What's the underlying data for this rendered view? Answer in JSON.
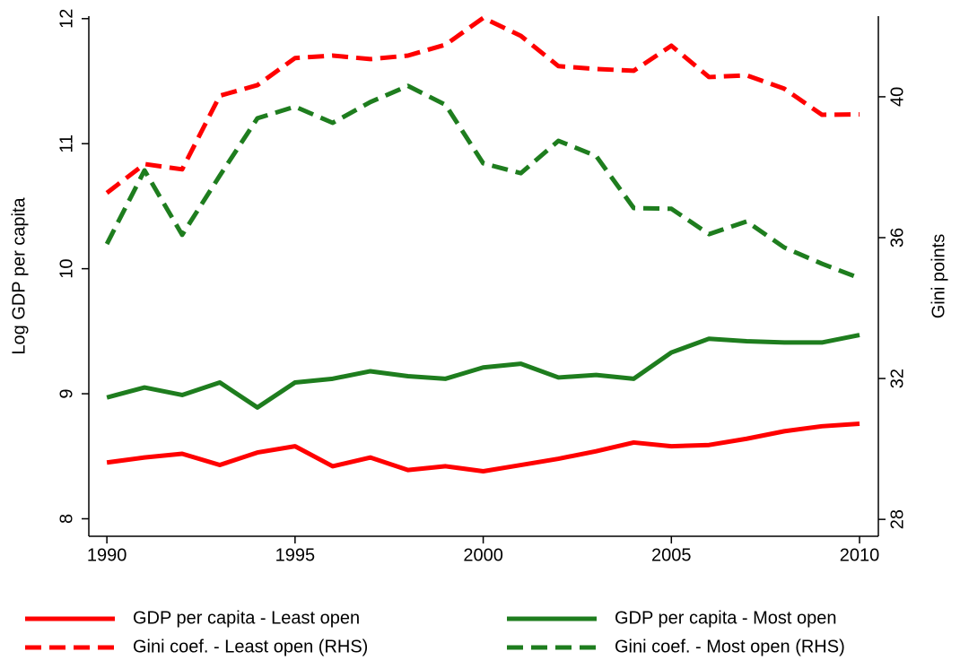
{
  "chart_data": {
    "type": "line",
    "y_label": "Log GDP per capita",
    "y2_label": "Gini points",
    "x": [
      1990,
      1991,
      1992,
      1993,
      1994,
      1995,
      1996,
      1997,
      1998,
      1999,
      2000,
      2001,
      2002,
      2003,
      2004,
      2005,
      2006,
      2007,
      2008,
      2009,
      2010
    ],
    "xlim": [
      1989.52,
      2010.5
    ],
    "xticks": [
      1990,
      1995,
      2000,
      2005,
      2010
    ],
    "ylim": [
      7.86,
      12.02
    ],
    "yticks": [
      8,
      9,
      10,
      11,
      12
    ],
    "y2lim": [
      27.52,
      42.29
    ],
    "y2ticks": [
      28,
      32,
      36,
      40
    ],
    "series": [
      {
        "name": "GDP per capita - Least open",
        "color": "#ff0000",
        "style": "solid",
        "values": [
          8.45,
          8.49,
          8.52,
          8.43,
          8.53,
          8.58,
          8.42,
          8.49,
          8.39,
          8.42,
          8.38,
          8.43,
          8.48,
          8.54,
          8.61,
          8.58,
          8.59,
          8.64,
          8.7,
          8.74,
          8.76
        ]
      },
      {
        "name": "GDP per capita - Most open",
        "color": "#1e7d1e",
        "style": "solid",
        "values": [
          8.97,
          9.05,
          8.99,
          9.09,
          8.89,
          9.09,
          9.12,
          9.18,
          9.14,
          9.12,
          9.21,
          9.24,
          9.13,
          9.15,
          9.12,
          9.33,
          9.44,
          9.42,
          9.41,
          9.41,
          9.47
        ]
      },
      {
        "name": "Gini coef. - Least open (RHS)",
        "color": "#ff0000",
        "style": "dashed",
        "axis": "y2",
        "values": [
          37.27,
          38.09,
          37.94,
          40.03,
          40.33,
          41.1,
          41.17,
          41.07,
          41.17,
          41.48,
          42.24,
          41.73,
          40.87,
          40.79,
          40.74,
          41.45,
          40.56,
          40.61,
          40.23,
          39.49,
          39.5
        ]
      },
      {
        "name": "Gini coef. - Most open (RHS)",
        "color": "#1e7d1e",
        "style": "dashed",
        "axis": "y2",
        "values": [
          35.82,
          37.91,
          36.08,
          37.76,
          39.39,
          39.72,
          39.26,
          39.85,
          40.31,
          39.77,
          38.11,
          37.83,
          38.75,
          38.32,
          36.84,
          36.82,
          36.1,
          36.46,
          35.72,
          35.26,
          34.85
        ]
      }
    ]
  }
}
